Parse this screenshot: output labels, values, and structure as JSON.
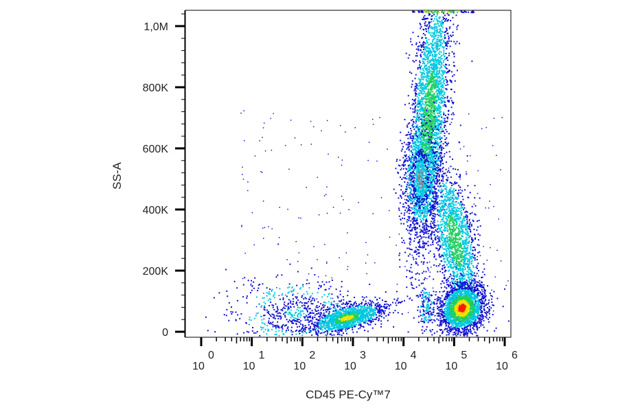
{
  "chart_data": {
    "type": "scatter",
    "title": "",
    "xlabel": "CD45 PE-Cy™7",
    "ylabel": "SS-A",
    "x_scale": "log",
    "xlim": [
      1,
      1000000
    ],
    "ylim": [
      0,
      1050000
    ],
    "x_tick_base": "10",
    "x_tick_exponents": [
      "0",
      "1",
      "2",
      "3",
      "4",
      "5",
      "6"
    ],
    "y_ticks": [
      {
        "value": 0,
        "label": "0"
      },
      {
        "value": 200000,
        "label": "200K"
      },
      {
        "value": 400000,
        "label": "400K"
      },
      {
        "value": 600000,
        "label": "600K"
      },
      {
        "value": 800000,
        "label": "800K"
      },
      {
        "value": 1000000,
        "label": "1,0M"
      }
    ],
    "density_colors": [
      "#1010d0",
      "#00c8e0",
      "#20d060",
      "#f0e000",
      "#ff1a00"
    ],
    "populations": [
      {
        "x_center": 15000,
        "y_center": 720000,
        "density": "high"
      },
      {
        "x_center": 12000,
        "y_center": 520000,
        "density": "medium"
      },
      {
        "x_center": 40000,
        "y_center": 300000,
        "density": "medium"
      },
      {
        "x_center": 100000,
        "y_center": 80000,
        "density": "very high"
      },
      {
        "x_center": 800,
        "y_center": 50000,
        "density": "high"
      },
      {
        "x_center": 100,
        "y_center": 60000,
        "density": "low"
      }
    ]
  }
}
